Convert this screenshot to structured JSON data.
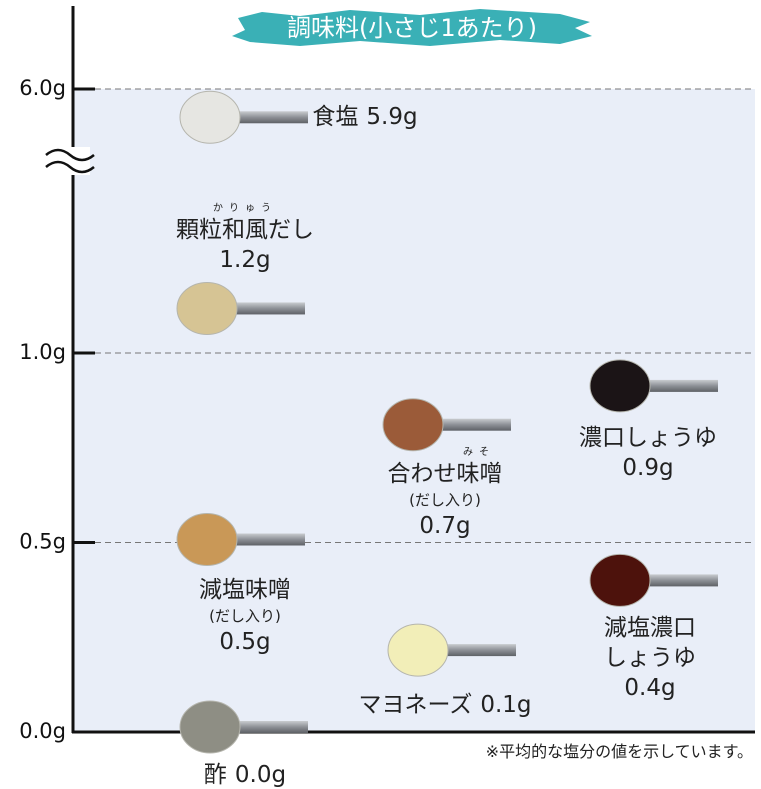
{
  "chart_data": {
    "type": "scatter",
    "title": "調味料(小さじ1あたり)",
    "footnote": "※平均的な塩分の値を示しています。",
    "categories": [
      "食塩",
      "顆粒和風だし",
      "濃口しょうゆ",
      "合わせ味噌",
      "減塩味噌",
      "減塩濃口しょうゆ",
      "マヨネーズ",
      "酢"
    ],
    "ruby": [
      null,
      "かりゅう",
      null,
      "みそ",
      null,
      null,
      null,
      null
    ],
    "notes": [
      null,
      null,
      null,
      "(だし入り)",
      "(だし入り)",
      null,
      null,
      null
    ],
    "values": [
      5.9,
      1.2,
      0.9,
      0.7,
      0.5,
      0.4,
      0.1,
      0.0
    ],
    "value_labels": [
      "5.9g",
      "1.2g",
      "0.9g",
      "0.7g",
      "0.5g",
      "0.4g",
      "0.1g",
      "0.0g"
    ],
    "colors": [
      "#e6e6e2",
      "#d6c494",
      "#1b1416",
      "#9b5b39",
      "#c99857",
      "#4d120c",
      "#f2eeb8",
      "#8e8e84"
    ],
    "ylim": [
      0,
      6
    ],
    "yticks": [
      {
        "value": 0,
        "label": "0.0g"
      },
      {
        "value": 0.5,
        "label": "0.5g"
      },
      {
        "value": 1,
        "label": "1.0g"
      },
      {
        "value": 6,
        "label": "6.0g"
      }
    ],
    "y_break": true,
    "grid": true
  }
}
